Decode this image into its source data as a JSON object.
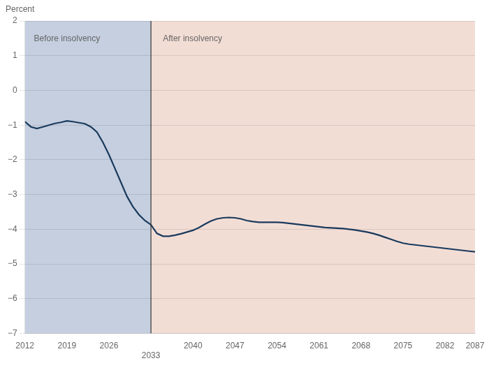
{
  "chart_data": {
    "type": "line",
    "ylabel": "Percent",
    "x": [
      2012,
      2013,
      2014,
      2015,
      2016,
      2017,
      2018,
      2019,
      2020,
      2021,
      2022,
      2023,
      2024,
      2025,
      2026,
      2027,
      2028,
      2029,
      2030,
      2031,
      2032,
      2033,
      2034,
      2035,
      2036,
      2037,
      2038,
      2039,
      2040,
      2041,
      2042,
      2043,
      2044,
      2045,
      2046,
      2047,
      2048,
      2049,
      2050,
      2051,
      2052,
      2053,
      2054,
      2055,
      2056,
      2057,
      2058,
      2059,
      2060,
      2061,
      2062,
      2063,
      2064,
      2065,
      2066,
      2067,
      2068,
      2069,
      2070,
      2071,
      2072,
      2073,
      2074,
      2075,
      2076,
      2077,
      2078,
      2079,
      2080,
      2081,
      2082,
      2083,
      2084,
      2085,
      2086,
      2087
    ],
    "values": [
      -0.9,
      -1.05,
      -1.1,
      -1.05,
      -1.0,
      -0.95,
      -0.92,
      -0.88,
      -0.9,
      -0.93,
      -0.96,
      -1.05,
      -1.2,
      -1.5,
      -1.85,
      -2.25,
      -2.65,
      -3.05,
      -3.35,
      -3.58,
      -3.75,
      -3.87,
      -4.12,
      -4.2,
      -4.2,
      -4.17,
      -4.13,
      -4.08,
      -4.03,
      -3.95,
      -3.85,
      -3.76,
      -3.7,
      -3.67,
      -3.66,
      -3.67,
      -3.7,
      -3.75,
      -3.78,
      -3.8,
      -3.8,
      -3.8,
      -3.8,
      -3.81,
      -3.83,
      -3.85,
      -3.87,
      -3.89,
      -3.91,
      -3.93,
      -3.95,
      -3.96,
      -3.97,
      -3.98,
      -4.0,
      -4.02,
      -4.05,
      -4.08,
      -4.12,
      -4.17,
      -4.23,
      -4.29,
      -4.35,
      -4.4,
      -4.43,
      -4.45,
      -4.47,
      -4.49,
      -4.51,
      -4.53,
      -4.55,
      -4.57,
      -4.59,
      -4.61,
      -4.63,
      -4.65
    ],
    "color": "#1a3a5c",
    "xlim": [
      2012,
      2087
    ],
    "ylim": [
      -7,
      2
    ],
    "xticks": [
      2012,
      2019,
      2026,
      2040,
      2047,
      2054,
      2061,
      2068,
      2075,
      2082,
      2087
    ],
    "yticks": [
      {
        "value": -7,
        "label": "−7"
      },
      {
        "value": -6,
        "label": "−6"
      },
      {
        "value": -5,
        "label": "−5"
      },
      {
        "value": -4,
        "label": "−4"
      },
      {
        "value": -3,
        "label": "−3"
      },
      {
        "value": -2,
        "label": "−2"
      },
      {
        "value": -1,
        "label": "−1"
      },
      0,
      1,
      2
    ],
    "grid": "y",
    "regions": [
      {
        "from": 2012,
        "to": 2033,
        "color": "#c5cfe0"
      },
      {
        "from": 2033,
        "to": 2087,
        "color": "#f2ddd5"
      }
    ],
    "vlines": [
      {
        "x": 2033,
        "color": "#333333"
      }
    ],
    "annotations": [
      {
        "text": "Before insolvency",
        "x": 2013.5,
        "y": 1.6
      },
      {
        "text": "After insolvency",
        "x": 2035,
        "y": 1.6
      },
      {
        "text": "2033",
        "x": 2033,
        "y": -7
      }
    ]
  }
}
